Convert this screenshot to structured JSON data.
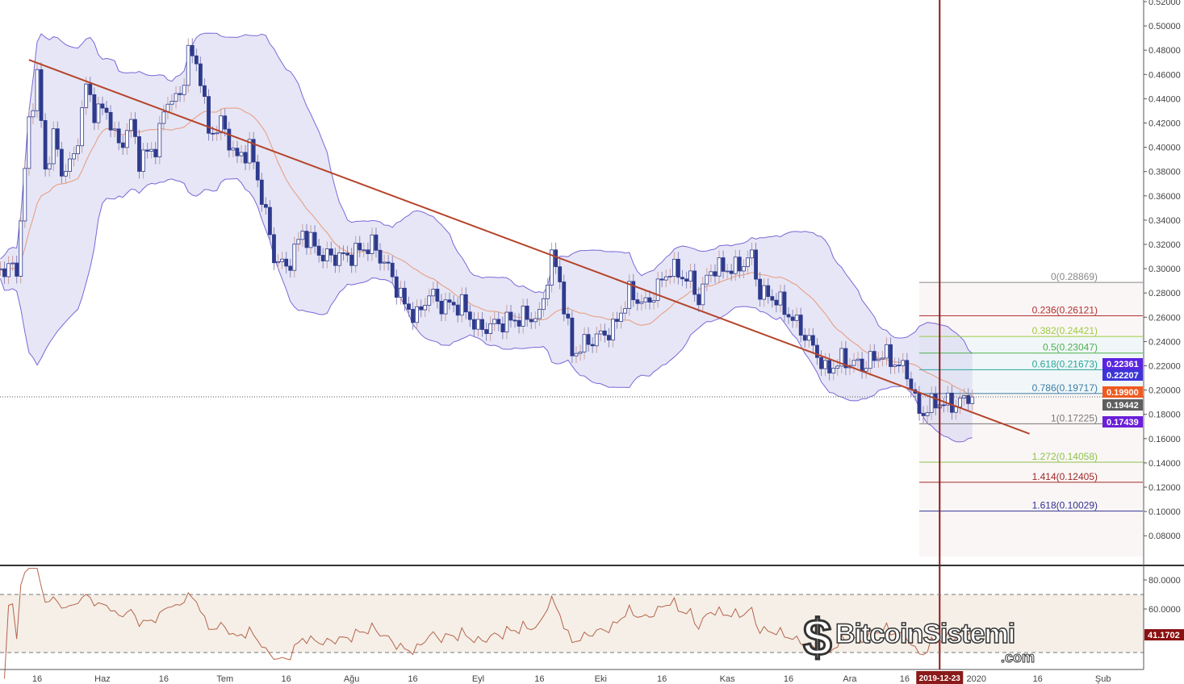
{
  "chart_data": [
    {
      "type": "candlestick",
      "axis_ticks_price": [
        "0.52000",
        "0.50000",
        "0.48000",
        "0.46000",
        "0.44000",
        "0.42000",
        "0.40000",
        "0.38000",
        "0.36000",
        "0.34000",
        "0.32000",
        "0.30000",
        "0.28000",
        "0.26000",
        "0.24000",
        "0.22000",
        "0.20000",
        "0.18000",
        "0.16000",
        "0.14000",
        "0.12000",
        "0.10000",
        "0.08000"
      ],
      "ylim": [
        0.06,
        0.52
      ],
      "time_ticks": [
        {
          "date": "2019-05-16",
          "label": "16"
        },
        {
          "date": "2019-06-01",
          "label": "Haz"
        },
        {
          "date": "2019-06-16",
          "label": "16"
        },
        {
          "date": "2019-07-01",
          "label": "Tem"
        },
        {
          "date": "2019-07-16",
          "label": "16"
        },
        {
          "date": "2019-08-01",
          "label": "Ağu"
        },
        {
          "date": "2019-08-16",
          "label": "16"
        },
        {
          "date": "2019-09-01",
          "label": "Eyl"
        },
        {
          "date": "2019-09-16",
          "label": "16"
        },
        {
          "date": "2019-10-01",
          "label": "Eki"
        },
        {
          "date": "2019-10-16",
          "label": "16"
        },
        {
          "date": "2019-11-01",
          "label": "Kas"
        },
        {
          "date": "2019-11-16",
          "label": "16"
        },
        {
          "date": "2019-12-01",
          "label": "Ara"
        },
        {
          "date": "2019-12-16",
          "label": "16"
        },
        {
          "date": "2020-01-01",
          "label": "2020"
        },
        {
          "date": "2020-01-16",
          "label": "16"
        },
        {
          "date": "2020-02-01",
          "label": "Şub"
        }
      ],
      "close_path": [
        [
          "2019-05-07",
          0.3
        ],
        [
          "2019-05-11",
          0.3
        ],
        [
          "2019-05-14",
          0.42
        ],
        [
          "2019-05-16",
          0.46
        ],
        [
          "2019-05-18",
          0.38
        ],
        [
          "2019-05-20",
          0.41
        ],
        [
          "2019-05-22",
          0.38
        ],
        [
          "2019-05-25",
          0.39
        ],
        [
          "2019-05-28",
          0.45
        ],
        [
          "2019-05-30",
          0.43
        ],
        [
          "2019-06-02",
          0.43
        ],
        [
          "2019-06-05",
          0.4
        ],
        [
          "2019-06-08",
          0.42
        ],
        [
          "2019-06-10",
          0.39
        ],
        [
          "2019-06-14",
          0.4
        ],
        [
          "2019-06-17",
          0.44
        ],
        [
          "2019-06-20",
          0.44
        ],
        [
          "2019-06-22",
          0.48
        ],
        [
          "2019-06-25",
          0.46
        ],
        [
          "2019-06-27",
          0.41
        ],
        [
          "2019-06-30",
          0.42
        ],
        [
          "2019-07-04",
          0.39
        ],
        [
          "2019-07-07",
          0.4
        ],
        [
          "2019-07-10",
          0.36
        ],
        [
          "2019-07-13",
          0.31
        ],
        [
          "2019-07-16",
          0.3
        ],
        [
          "2019-07-20",
          0.33
        ],
        [
          "2019-07-25",
          0.31
        ],
        [
          "2019-07-31",
          0.31
        ],
        [
          "2019-08-06",
          0.32
        ],
        [
          "2019-08-10",
          0.3
        ],
        [
          "2019-08-14",
          0.27
        ],
        [
          "2019-08-17",
          0.26
        ],
        [
          "2019-08-20",
          0.28
        ],
        [
          "2019-08-23",
          0.27
        ],
        [
          "2019-08-28",
          0.27
        ],
        [
          "2019-09-01",
          0.25
        ],
        [
          "2019-09-06",
          0.255
        ],
        [
          "2019-09-12",
          0.26
        ],
        [
          "2019-09-16",
          0.26
        ],
        [
          "2019-09-19",
          0.31
        ],
        [
          "2019-09-21",
          0.29
        ],
        [
          "2019-09-24",
          0.23
        ],
        [
          "2019-09-28",
          0.24
        ],
        [
          "2019-10-04",
          0.25
        ],
        [
          "2019-10-08",
          0.28
        ],
        [
          "2019-10-12",
          0.27
        ],
        [
          "2019-10-16",
          0.29
        ],
        [
          "2019-10-18",
          0.3
        ],
        [
          "2019-10-23",
          0.29
        ],
        [
          "2019-10-25",
          0.275
        ],
        [
          "2019-10-28",
          0.3
        ],
        [
          "2019-11-03",
          0.3
        ],
        [
          "2019-11-07",
          0.31
        ],
        [
          "2019-11-09",
          0.28
        ],
        [
          "2019-11-13",
          0.275
        ],
        [
          "2019-11-19",
          0.25
        ],
        [
          "2019-11-23",
          0.23
        ],
        [
          "2019-11-25",
          0.215
        ],
        [
          "2019-11-29",
          0.225
        ],
        [
          "2019-12-04",
          0.22
        ],
        [
          "2019-12-09",
          0.23
        ],
        [
          "2019-12-15",
          0.215
        ],
        [
          "2019-12-18",
          0.18
        ],
        [
          "2019-12-22",
          0.19
        ],
        [
          "2019-12-27",
          0.188
        ],
        [
          "2019-12-30",
          0.194
        ],
        [
          "2019-12-31",
          0.1944
        ]
      ],
      "indicators": [
        "Bollinger Bands (20)",
        "Moving Average"
      ],
      "trendline": {
        "start": [
          "2019-05-14",
          0.472
        ],
        "end": [
          "2020-01-14",
          0.164
        ],
        "color": "#b5442a"
      },
      "crosshair_date": "2019-12-23",
      "fibonacci": {
        "start_date": "2019-12-18",
        "end_date": "2020-02-10",
        "levels": [
          {
            "label": "0(0.28869)",
            "value": 0.28869,
            "color": "#888888"
          },
          {
            "label": "0.236(0.26121)",
            "value": 0.26121,
            "color": "#b03030"
          },
          {
            "label": "0.382(0.24421)",
            "value": 0.24421,
            "color": "#9ccc40"
          },
          {
            "label": "0.5(0.23047)",
            "value": 0.23047,
            "color": "#4caf50"
          },
          {
            "label": "0.618(0.21673)",
            "value": 0.21673,
            "color": "#26a69a"
          },
          {
            "label": "0.786(0.19717)",
            "value": 0.19717,
            "color": "#3a7ca5"
          },
          {
            "label": "1(0.17225)",
            "value": 0.17225,
            "color": "#777777"
          },
          {
            "label": "1.272(0.14058)",
            "value": 0.14058,
            "color": "#8bc34a"
          },
          {
            "label": "1.414(0.12405)",
            "value": 0.12405,
            "color": "#a02828"
          },
          {
            "label": "1.618(0.10029)",
            "value": 0.10029,
            "color": "#303090"
          }
        ]
      },
      "price_tags": [
        {
          "text": "0.22361",
          "value": 0.22361,
          "color": "#5a24e0"
        },
        {
          "text": "0.22207",
          "value": 0.22207,
          "color": "#3d34d8"
        },
        {
          "text": "0.19900",
          "value": 0.199,
          "color": "#ef5a20"
        },
        {
          "text": "0.19442",
          "value": 0.19442,
          "color": "#5f5f5f"
        },
        {
          "text": "0.17439",
          "value": 0.17439,
          "color": "#6a1fd8"
        }
      ],
      "crosshair_label": "2019-12-23",
      "colors": {
        "up": "#ffffff",
        "down": "#2e3a8c",
        "band": "#7b68d8",
        "band_fill": "#dcdcf2",
        "ma": "#e89a7a",
        "crosshair": "#8b1a1a"
      }
    },
    {
      "type": "line",
      "name": "RSI",
      "axis_ticks": [
        "80.0000",
        "60.0000"
      ],
      "ylim": [
        0,
        90
      ],
      "bands": [
        30,
        70
      ],
      "last_value_label": "41.1702",
      "last_value_color": "#8b1010",
      "line_color": "#b5654a"
    }
  ],
  "watermark": {
    "brand": "BitcoinSistemi",
    "suffix": ".com"
  }
}
